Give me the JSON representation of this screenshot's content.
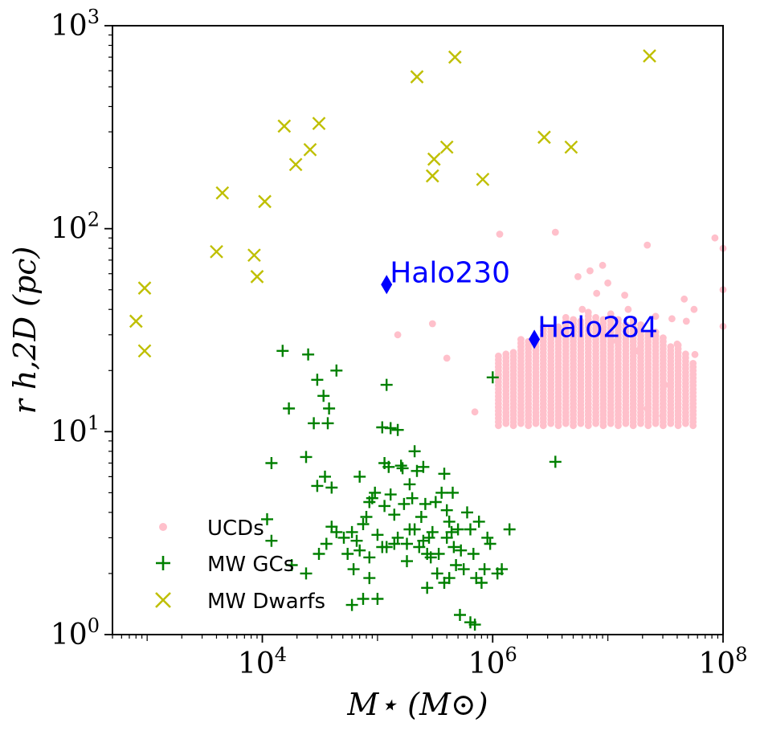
{
  "chart_data": {
    "type": "scatter",
    "xscale": "log",
    "yscale": "log",
    "xlim": [
      500,
      100000000
    ],
    "ylim": [
      1,
      1000
    ],
    "x_ticks": [
      {
        "value": 10000,
        "base": "10",
        "exp": "4"
      },
      {
        "value": 1000000,
        "base": "10",
        "exp": "6"
      },
      {
        "value": 100000000,
        "base": "10",
        "exp": "8"
      }
    ],
    "y_ticks": [
      {
        "value": 1,
        "base": "10",
        "exp": "0"
      },
      {
        "value": 10,
        "base": "10",
        "exp": "1"
      },
      {
        "value": 100,
        "base": "10",
        "exp": "2"
      },
      {
        "value": 1000,
        "base": "10",
        "exp": "3"
      }
    ],
    "xlabel": "M⋆ (M⊙)",
    "ylabel": "r h,2D (pc)",
    "legend_position": "lower-left",
    "series": [
      {
        "name": "UCDs",
        "marker": "dot",
        "color": "#ffc0cb",
        "grid": {
          "log_x_start": 6.05,
          "log_x_end": 7.75,
          "log_x_step": 0.065,
          "log_y_min": 1.03,
          "log_y_max_low": 1.38,
          "log_y_max_high": 1.6,
          "log_y_step": 0.018
        },
        "points": [
          [
            150000,
            30
          ],
          [
            300000,
            34
          ],
          [
            400000,
            23
          ],
          [
            700000,
            12.5
          ],
          [
            1150000,
            94
          ],
          [
            3500000,
            96
          ],
          [
            5500000,
            58
          ],
          [
            7000000,
            62
          ],
          [
            9000000,
            66
          ],
          [
            15000000,
            40
          ],
          [
            22000000,
            83
          ],
          [
            26000000,
            37
          ],
          [
            36000000,
            36
          ],
          [
            48000000,
            35
          ],
          [
            85000000,
            90
          ],
          [
            100000000,
            80
          ],
          [
            100000000,
            50
          ],
          [
            100000000,
            33
          ],
          [
            46000000,
            45
          ],
          [
            56000000,
            40
          ],
          [
            57000000,
            24
          ],
          [
            40000000,
            27
          ],
          [
            31000000,
            17
          ],
          [
            22000000,
            13
          ],
          [
            30000000,
            12
          ],
          [
            18000000,
            25
          ],
          [
            12000000,
            28
          ],
          [
            6000000,
            40
          ],
          [
            8000000,
            48
          ],
          [
            10000000,
            54
          ],
          [
            14000000,
            47
          ]
        ]
      },
      {
        "name": "MW GCs",
        "marker": "plus",
        "color": "#008000",
        "points": [
          [
            15000,
            25
          ],
          [
            25000,
            24
          ],
          [
            30000,
            18
          ],
          [
            44000,
            20
          ],
          [
            34000,
            15
          ],
          [
            38000,
            13
          ],
          [
            17000,
            13
          ],
          [
            28000,
            11
          ],
          [
            37000,
            11
          ],
          [
            12000,
            7
          ],
          [
            24000,
            7.5
          ],
          [
            30000,
            5.4
          ],
          [
            35000,
            6
          ],
          [
            40000,
            5.3
          ],
          [
            11000,
            3.7
          ],
          [
            12000,
            2.9
          ],
          [
            18000,
            2.2
          ],
          [
            24000,
            2.0
          ],
          [
            31000,
            2.5
          ],
          [
            36000,
            2.8
          ],
          [
            40000,
            3.4
          ],
          [
            44000,
            3.2
          ],
          [
            51000,
            3.0
          ],
          [
            55000,
            2.5
          ],
          [
            60000,
            3.2
          ],
          [
            62000,
            2.1
          ],
          [
            66000,
            2.9
          ],
          [
            70000,
            2.6
          ],
          [
            75000,
            3.5
          ],
          [
            80000,
            3.8
          ],
          [
            85000,
            2.4
          ],
          [
            90000,
            4.7
          ],
          [
            95000,
            5.0
          ],
          [
            100000,
            3.1
          ],
          [
            110000,
            2.7
          ],
          [
            115000,
            4.3
          ],
          [
            120000,
            2.7
          ],
          [
            125000,
            6.7
          ],
          [
            130000,
            4.9
          ],
          [
            140000,
            2.8
          ],
          [
            150000,
            3.0
          ],
          [
            165000,
            6.6
          ],
          [
            170000,
            4.4
          ],
          [
            180000,
            2.8
          ],
          [
            190000,
            5.5
          ],
          [
            200000,
            4.7
          ],
          [
            210000,
            3.3
          ],
          [
            220000,
            6.4
          ],
          [
            230000,
            2.7
          ],
          [
            240000,
            3.8
          ],
          [
            250000,
            2.9
          ],
          [
            260000,
            4.4
          ],
          [
            270000,
            2.5
          ],
          [
            280000,
            3.0
          ],
          [
            290000,
            2.4
          ],
          [
            300000,
            3.2
          ],
          [
            320000,
            4.5
          ],
          [
            340000,
            2.5
          ],
          [
            360000,
            5.0
          ],
          [
            380000,
            6.2
          ],
          [
            400000,
            3.0
          ],
          [
            420000,
            3.6
          ],
          [
            440000,
            3.2
          ],
          [
            460000,
            2.7
          ],
          [
            480000,
            2.2
          ],
          [
            500000,
            3.3
          ],
          [
            530000,
            2.6
          ],
          [
            560000,
            2.1
          ],
          [
            600000,
            4.0
          ],
          [
            640000,
            3.3
          ],
          [
            680000,
            2.5
          ],
          [
            720000,
            1.9
          ],
          [
            760000,
            3.6
          ],
          [
            800000,
            1.8
          ],
          [
            850000,
            2.1
          ],
          [
            900000,
            3.0
          ],
          [
            950000,
            2.8
          ],
          [
            1100000,
            2.0
          ],
          [
            1200000,
            2.1
          ],
          [
            1400000,
            3.3
          ],
          [
            3500000,
            7.1
          ],
          [
            1000000,
            18.5
          ],
          [
            120000,
            17
          ],
          [
            130000,
            10.4
          ],
          [
            110000,
            10.5
          ],
          [
            150000,
            10.2
          ],
          [
            160000,
            6.8
          ],
          [
            210000,
            8.0
          ],
          [
            250000,
            6.7
          ],
          [
            400000,
            4.1
          ],
          [
            115000,
            7.0
          ],
          [
            70000,
            6.0
          ],
          [
            85000,
            4.5
          ],
          [
            140000,
            3.9
          ],
          [
            100000,
            1.5
          ],
          [
            75000,
            1.5
          ],
          [
            60000,
            1.4
          ],
          [
            85000,
            1.9
          ],
          [
            180000,
            2.3
          ],
          [
            270000,
            1.7
          ],
          [
            330000,
            2.0
          ],
          [
            380000,
            1.8
          ],
          [
            520000,
            1.25
          ],
          [
            640000,
            1.15
          ],
          [
            700000,
            1.12
          ],
          [
            450000,
            5.0
          ],
          [
            420000,
            1.9
          ],
          [
            190000,
            3.3
          ]
        ]
      },
      {
        "name": "MW Dwarfs",
        "marker": "x",
        "color": "#bfbf00",
        "points": [
          [
            800,
            35
          ],
          [
            950,
            51
          ],
          [
            950,
            25
          ],
          [
            4000,
            77
          ],
          [
            4500,
            150
          ],
          [
            8500,
            74
          ],
          [
            9000,
            58
          ],
          [
            10500,
            136
          ],
          [
            15500,
            320
          ],
          [
            19500,
            207
          ],
          [
            26000,
            245
          ],
          [
            31000,
            330
          ],
          [
            220000,
            560
          ],
          [
            310000,
            220
          ],
          [
            300000,
            182
          ],
          [
            400000,
            252
          ],
          [
            470000,
            700
          ],
          [
            820000,
            175
          ],
          [
            2800000,
            282
          ],
          [
            4800000,
            252
          ],
          [
            23000000,
            710
          ]
        ]
      }
    ],
    "annotations": [
      {
        "label": "Halo230",
        "x": 120000,
        "y": 53,
        "color": "#0000ff",
        "marker": "diamond"
      },
      {
        "label": "Halo284",
        "x": 2300000,
        "y": 28.5,
        "color": "#0000ff",
        "marker": "diamond"
      }
    ]
  }
}
